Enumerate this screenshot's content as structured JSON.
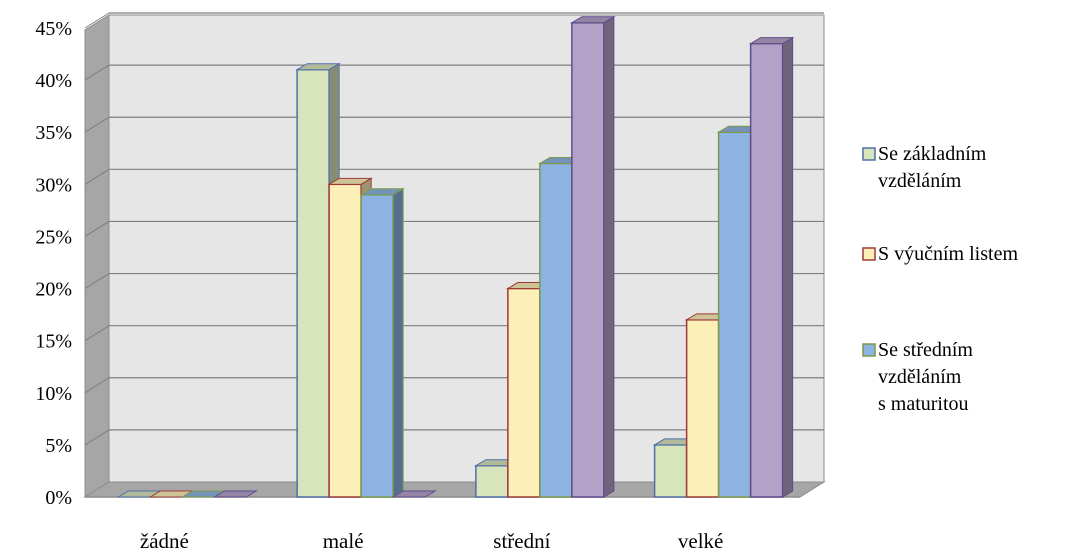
{
  "chart_data": {
    "type": "bar",
    "categories": [
      "žádné",
      "malé",
      "střední",
      "velké"
    ],
    "series": [
      {
        "name": "Se základním vzděláním",
        "legend_lines": [
          "Se základním",
          "vzděláním"
        ],
        "values": [
          0,
          41,
          3,
          5
        ],
        "fill": "#d8e4bc",
        "stroke": "#4f6fa8"
      },
      {
        "name": "S výučním listem",
        "legend_lines": [
          "S výučním listem"
        ],
        "values": [
          0,
          30,
          20,
          17
        ],
        "fill": "#fdefb8",
        "stroke": "#9e3a38"
      },
      {
        "name": "Se středním vzděláním s maturitou",
        "legend_lines": [
          "Se středním",
          "vzděláním",
          "s maturitou"
        ],
        "values": [
          0,
          29,
          32,
          35
        ],
        "fill": "#8db3e2",
        "stroke": "#7a9a4a"
      },
      {
        "name": "",
        "legend_lines": [],
        "values": [
          0,
          0,
          45.5,
          43.5
        ],
        "fill": "#b3a2c7",
        "stroke": "#5f4b8b"
      }
    ],
    "y_ticks": [
      "0%",
      "5%",
      "10%",
      "15%",
      "20%",
      "25%",
      "30%",
      "35%",
      "40%",
      "45%"
    ],
    "ylim": [
      0,
      45
    ],
    "grid": true,
    "legend_position": "right",
    "title": "",
    "xlabel": "",
    "ylabel": ""
  }
}
